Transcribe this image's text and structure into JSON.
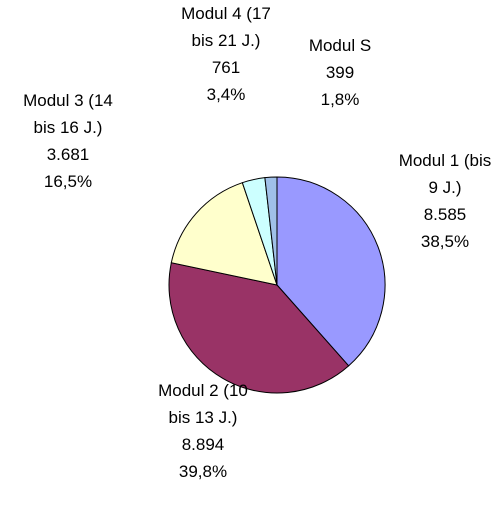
{
  "chart_data": {
    "type": "pie",
    "categories": [
      "Modul 1 (bis 9 J.)",
      "Modul 2 (10 bis 13 J.)",
      "Modul 3 (14 bis 16 J.)",
      "Modul 4 (17 bis 21 J.)",
      "Modul S"
    ],
    "values": [
      8585,
      8894,
      3681,
      761,
      399
    ],
    "value_labels": [
      "8.585",
      "8.894",
      "3.681",
      "761",
      "399"
    ],
    "percent_labels": [
      "38,5%",
      "39,8%",
      "16,5%",
      "3,4%",
      "1,8%"
    ],
    "colors": [
      "#9999ff",
      "#993366",
      "#ffffcc",
      "#ccffff",
      "#a0c0e8"
    ]
  }
}
